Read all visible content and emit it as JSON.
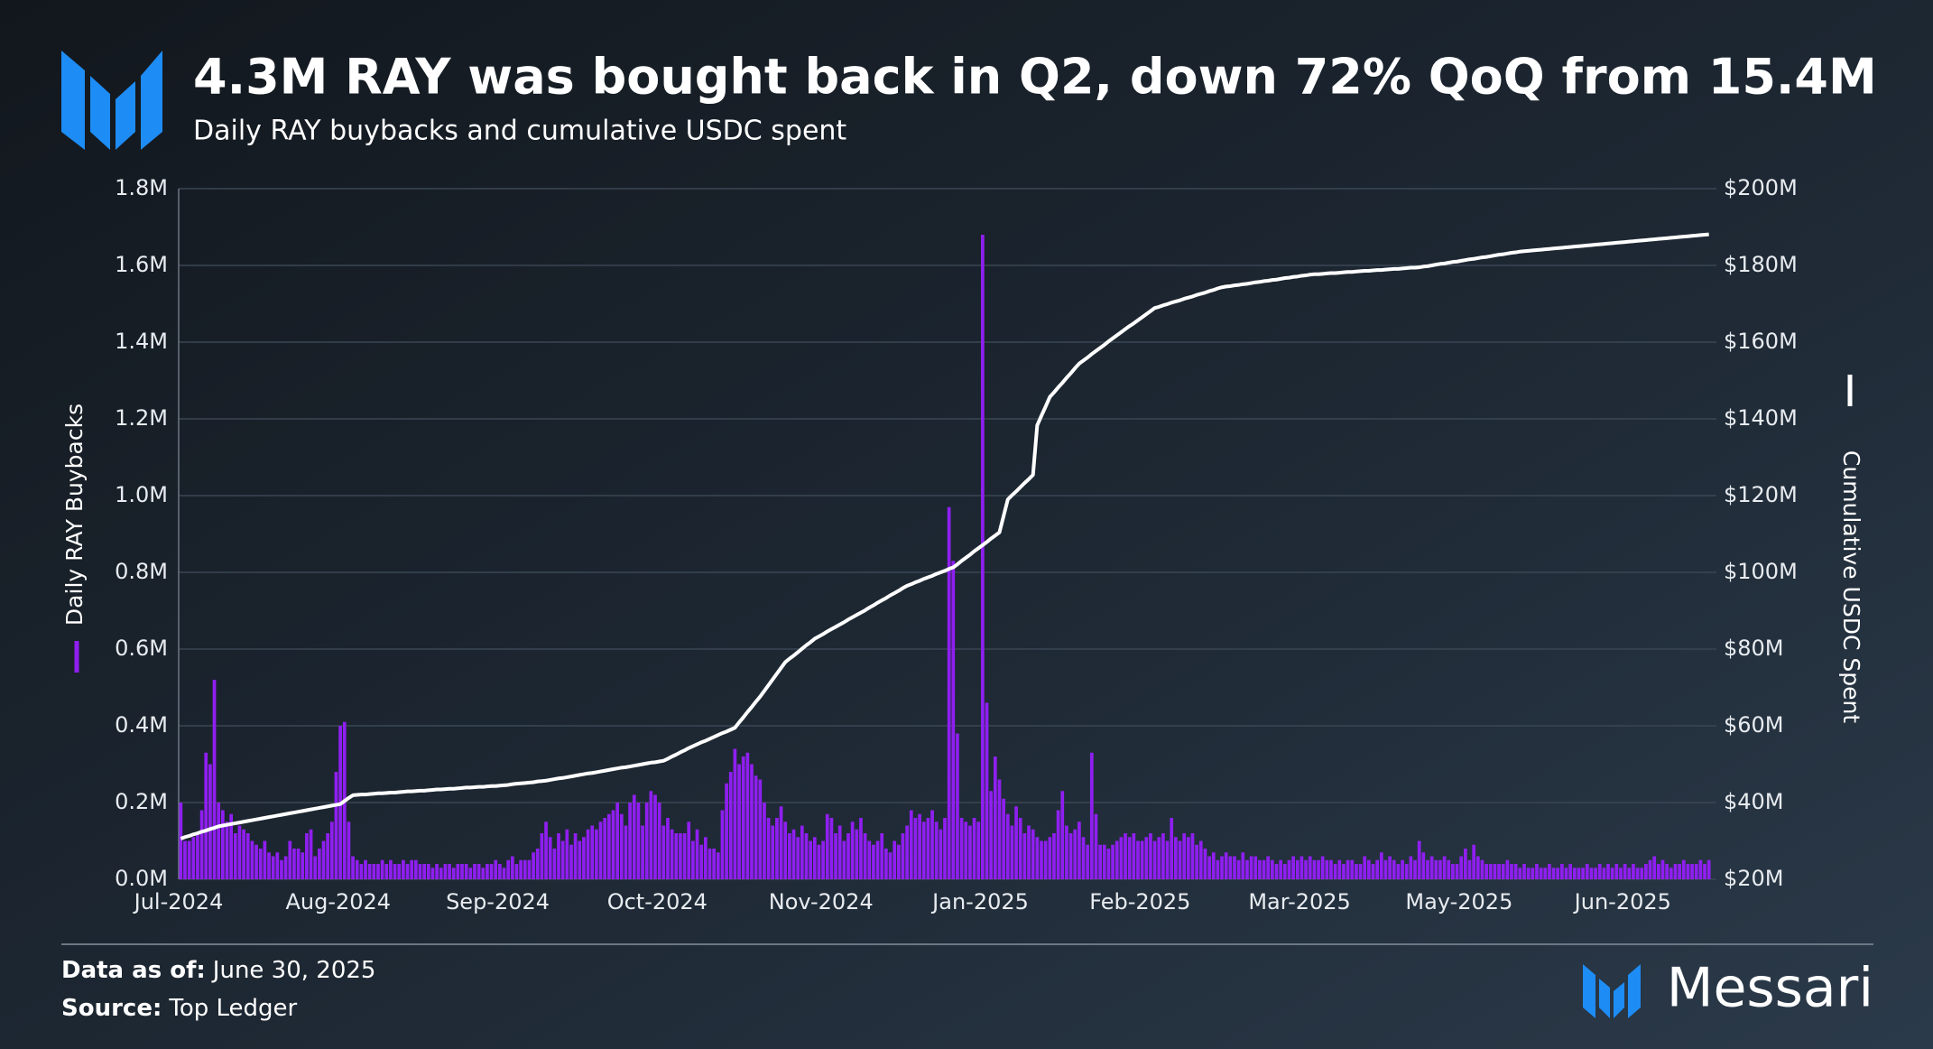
{
  "title": "4.3M RAY was bought back in Q2, down 72% QoQ from 15.4M",
  "subtitle": "Daily RAY buybacks and cumulative USDC spent",
  "chart_data": {
    "type": "combo",
    "grid": true,
    "categories": [
      "Jul-2024",
      null,
      null,
      null,
      null,
      null,
      null,
      null,
      null,
      null,
      null,
      null,
      null,
      null,
      null,
      null,
      null,
      null,
      null,
      null,
      null,
      null,
      null,
      null,
      null,
      null,
      null,
      null,
      null,
      null,
      null,
      null,
      null,
      null,
      null,
      null,
      null,
      null,
      "Aug-2024",
      null,
      null,
      null,
      null,
      null,
      null,
      null,
      null,
      null,
      null,
      null,
      null,
      null,
      null,
      null,
      null,
      null,
      null,
      null,
      null,
      null,
      null,
      null,
      null,
      null,
      null,
      null,
      null,
      null,
      null,
      null,
      null,
      null,
      null,
      null,
      null,
      null,
      "Sep-2024",
      null,
      null,
      null,
      null,
      null,
      null,
      null,
      null,
      null,
      null,
      null,
      null,
      null,
      null,
      null,
      null,
      null,
      null,
      null,
      null,
      null,
      null,
      null,
      null,
      null,
      null,
      null,
      null,
      null,
      null,
      null,
      null,
      null,
      null,
      null,
      null,
      null,
      "Oct-2024",
      null,
      null,
      null,
      null,
      null,
      null,
      null,
      null,
      null,
      null,
      null,
      null,
      null,
      null,
      null,
      null,
      null,
      null,
      null,
      null,
      null,
      null,
      null,
      null,
      null,
      null,
      null,
      null,
      null,
      null,
      null,
      null,
      null,
      null,
      null,
      null,
      null,
      null,
      "Nov-2024",
      null,
      null,
      null,
      null,
      null,
      null,
      null,
      null,
      null,
      null,
      null,
      null,
      null,
      null,
      null,
      null,
      null,
      null,
      null,
      null,
      null,
      null,
      null,
      null,
      null,
      null,
      null,
      null,
      null,
      null,
      null,
      null,
      null,
      null,
      null,
      null,
      null,
      "Jan-2025",
      null,
      null,
      null,
      null,
      null,
      null,
      null,
      null,
      null,
      null,
      null,
      null,
      null,
      null,
      null,
      null,
      null,
      null,
      null,
      null,
      null,
      null,
      null,
      null,
      null,
      null,
      null,
      null,
      null,
      null,
      null,
      null,
      null,
      null,
      null,
      null,
      null,
      "Feb-2025",
      null,
      null,
      null,
      null,
      null,
      null,
      null,
      null,
      null,
      null,
      null,
      null,
      null,
      null,
      null,
      null,
      null,
      null,
      null,
      null,
      null,
      null,
      null,
      null,
      null,
      null,
      null,
      null,
      null,
      null,
      null,
      null,
      null,
      null,
      null,
      null,
      null,
      "Mar-2025",
      null,
      null,
      null,
      null,
      null,
      null,
      null,
      null,
      null,
      null,
      null,
      null,
      null,
      null,
      null,
      null,
      null,
      null,
      null,
      null,
      null,
      null,
      null,
      null,
      null,
      null,
      null,
      null,
      null,
      null,
      null,
      null,
      null,
      null,
      null,
      null,
      null,
      "May-2025",
      null,
      null,
      null,
      null,
      null,
      null,
      null,
      null,
      null,
      null,
      null,
      null,
      null,
      null,
      null,
      null,
      null,
      null,
      null,
      null,
      null,
      null,
      null,
      null,
      null,
      null,
      null,
      null,
      null,
      null,
      null,
      null,
      null,
      null,
      null,
      null,
      null,
      null,
      "Jun-2025",
      null,
      null,
      null,
      null,
      null,
      null,
      null,
      null,
      null,
      null,
      null,
      null,
      null,
      null,
      null,
      null,
      null,
      null,
      null,
      null
    ],
    "series": [
      {
        "name": "Daily RAY Buybacks",
        "type": "bar",
        "color": "#8f1ff0",
        "values": [
          0.2,
          0.1,
          0.1,
          0.11,
          0.12,
          0.18,
          0.33,
          0.3,
          0.52,
          0.2,
          0.18,
          0.15,
          0.17,
          0.12,
          0.14,
          0.13,
          0.12,
          0.1,
          0.09,
          0.08,
          0.1,
          0.07,
          0.06,
          0.07,
          0.05,
          0.06,
          0.1,
          0.08,
          0.08,
          0.07,
          0.12,
          0.13,
          0.06,
          0.08,
          0.1,
          0.12,
          0.15,
          0.28,
          0.4,
          0.41,
          0.15,
          0.06,
          0.05,
          0.04,
          0.05,
          0.04,
          0.04,
          0.04,
          0.05,
          0.04,
          0.05,
          0.04,
          0.04,
          0.05,
          0.04,
          0.05,
          0.05,
          0.04,
          0.04,
          0.04,
          0.03,
          0.04,
          0.03,
          0.04,
          0.04,
          0.03,
          0.04,
          0.04,
          0.04,
          0.03,
          0.04,
          0.04,
          0.03,
          0.04,
          0.04,
          0.05,
          0.04,
          0.03,
          0.05,
          0.06,
          0.04,
          0.05,
          0.05,
          0.05,
          0.07,
          0.08,
          0.12,
          0.15,
          0.11,
          0.08,
          0.12,
          0.1,
          0.13,
          0.09,
          0.12,
          0.1,
          0.11,
          0.13,
          0.14,
          0.13,
          0.15,
          0.16,
          0.17,
          0.18,
          0.2,
          0.17,
          0.14,
          0.2,
          0.22,
          0.2,
          0.14,
          0.2,
          0.23,
          0.22,
          0.2,
          0.14,
          0.16,
          0.13,
          0.12,
          0.12,
          0.12,
          0.15,
          0.1,
          0.13,
          0.09,
          0.11,
          0.08,
          0.08,
          0.07,
          0.18,
          0.25,
          0.28,
          0.34,
          0.3,
          0.32,
          0.33,
          0.3,
          0.27,
          0.26,
          0.2,
          0.16,
          0.14,
          0.16,
          0.19,
          0.15,
          0.12,
          0.13,
          0.11,
          0.14,
          0.12,
          0.1,
          0.11,
          0.09,
          0.1,
          0.17,
          0.16,
          0.12,
          0.14,
          0.1,
          0.12,
          0.15,
          0.13,
          0.16,
          0.12,
          0.1,
          0.09,
          0.1,
          0.12,
          0.08,
          0.07,
          0.1,
          0.09,
          0.12,
          0.14,
          0.18,
          0.16,
          0.17,
          0.15,
          0.16,
          0.18,
          0.15,
          0.13,
          0.16,
          0.97,
          0.83,
          0.38,
          0.16,
          0.15,
          0.14,
          0.16,
          0.15,
          1.68,
          0.46,
          0.23,
          0.32,
          0.26,
          0.21,
          0.17,
          0.14,
          0.19,
          0.16,
          0.12,
          0.14,
          0.13,
          0.11,
          0.1,
          0.1,
          0.11,
          0.12,
          0.18,
          0.23,
          0.14,
          0.12,
          0.13,
          0.15,
          0.11,
          0.09,
          0.33,
          0.17,
          0.09,
          0.09,
          0.08,
          0.09,
          0.1,
          0.11,
          0.12,
          0.11,
          0.12,
          0.1,
          0.1,
          0.11,
          0.12,
          0.1,
          0.11,
          0.12,
          0.1,
          0.16,
          0.11,
          0.1,
          0.12,
          0.11,
          0.12,
          0.09,
          0.1,
          0.08,
          0.06,
          0.07,
          0.05,
          0.06,
          0.07,
          0.06,
          0.06,
          0.05,
          0.07,
          0.05,
          0.06,
          0.06,
          0.05,
          0.05,
          0.06,
          0.05,
          0.04,
          0.05,
          0.04,
          0.05,
          0.06,
          0.05,
          0.06,
          0.05,
          0.06,
          0.05,
          0.05,
          0.06,
          0.05,
          0.05,
          0.04,
          0.05,
          0.04,
          0.05,
          0.05,
          0.04,
          0.04,
          0.06,
          0.05,
          0.04,
          0.05,
          0.07,
          0.05,
          0.06,
          0.05,
          0.04,
          0.05,
          0.04,
          0.06,
          0.05,
          0.1,
          0.07,
          0.05,
          0.06,
          0.05,
          0.05,
          0.06,
          0.05,
          0.04,
          0.04,
          0.06,
          0.08,
          0.05,
          0.09,
          0.06,
          0.05,
          0.04,
          0.04,
          0.04,
          0.04,
          0.04,
          0.05,
          0.04,
          0.04,
          0.03,
          0.04,
          0.03,
          0.03,
          0.04,
          0.03,
          0.03,
          0.04,
          0.03,
          0.03,
          0.04,
          0.03,
          0.04,
          0.03,
          0.03,
          0.03,
          0.04,
          0.03,
          0.03,
          0.04,
          0.03,
          0.04,
          0.03,
          0.04,
          0.03,
          0.04,
          0.03,
          0.04,
          0.03,
          0.03,
          0.04,
          0.05,
          0.06,
          0.04,
          0.05,
          0.04,
          0.03,
          0.04,
          0.04,
          0.05,
          0.04,
          0.04,
          0.04,
          0.05,
          0.04,
          0.05
        ]
      },
      {
        "name": "Cumulative USDC Spent",
        "type": "line",
        "axis": "y2",
        "color": "#ffffff",
        "values": [
          30.6,
          31.0,
          31.3,
          31.7,
          32.0,
          32.4,
          32.7,
          33.1,
          33.4,
          33.8,
          34.0,
          34.2,
          34.4,
          34.6,
          34.8,
          35.0,
          35.2,
          35.4,
          35.6,
          35.8,
          36.0,
          36.2,
          36.4,
          36.6,
          36.8,
          37.0,
          37.2,
          37.4,
          37.6,
          37.8,
          38.0,
          38.2,
          38.4,
          38.6,
          38.8,
          39.0,
          39.2,
          39.4,
          39.6,
          40.4,
          41.2,
          41.9,
          42.0,
          42.1,
          42.1,
          42.2,
          42.3,
          42.4,
          42.4,
          42.5,
          42.6,
          42.6,
          42.7,
          42.8,
          42.9,
          42.9,
          43.0,
          43.1,
          43.1,
          43.2,
          43.3,
          43.4,
          43.4,
          43.5,
          43.6,
          43.6,
          43.7,
          43.8,
          43.9,
          43.9,
          44.0,
          44.1,
          44.1,
          44.2,
          44.3,
          44.3,
          44.4,
          44.5,
          44.6,
          44.8,
          44.9,
          45.0,
          45.1,
          45.2,
          45.3,
          45.5,
          45.6,
          45.7,
          45.9,
          46.1,
          46.3,
          46.4,
          46.6,
          46.8,
          47.0,
          47.2,
          47.4,
          47.6,
          47.7,
          47.9,
          48.1,
          48.3,
          48.5,
          48.7,
          48.9,
          49.1,
          49.2,
          49.4,
          49.6,
          49.8,
          50.0,
          50.2,
          50.4,
          50.5,
          50.7,
          50.9,
          51.4,
          52.0,
          52.5,
          53.1,
          53.6,
          54.2,
          54.7,
          55.2,
          55.7,
          56.1,
          56.6,
          57.1,
          57.6,
          58.1,
          58.5,
          59.0,
          59.5,
          60.9,
          62.2,
          63.6,
          64.9,
          66.3,
          67.6,
          69.1,
          70.6,
          72.1,
          73.6,
          75.1,
          76.6,
          77.5,
          78.3,
          79.2,
          80.1,
          81.0,
          81.8,
          82.7,
          83.3,
          83.9,
          84.6,
          85.2,
          85.8,
          86.4,
          87.0,
          87.7,
          88.3,
          88.9,
          89.5,
          90.1,
          90.8,
          91.4,
          92.1,
          92.7,
          93.3,
          94.0,
          94.6,
          95.2,
          95.9,
          96.5,
          96.9,
          97.4,
          97.8,
          98.3,
          98.7,
          99.1,
          99.6,
          100.0,
          100.4,
          100.9,
          101.3,
          102.1,
          103.0,
          103.8,
          104.6,
          105.5,
          106.3,
          107.1,
          107.9,
          108.8,
          109.6,
          110.4,
          114.7,
          119.0,
          120.1,
          121.1,
          122.2,
          123.3,
          124.3,
          125.4,
          138.3,
          140.8,
          143.2,
          145.7,
          146.9,
          148.2,
          149.4,
          150.7,
          151.9,
          153.2,
          154.4,
          155.2,
          156.0,
          156.9,
          157.7,
          158.5,
          159.3,
          160.2,
          161.0,
          161.8,
          162.6,
          163.4,
          164.2,
          164.9,
          165.7,
          166.5,
          167.3,
          168.1,
          168.9,
          169.2,
          169.6,
          169.9,
          170.3,
          170.6,
          170.9,
          171.3,
          171.6,
          171.9,
          172.3,
          172.6,
          172.9,
          173.3,
          173.6,
          174.0,
          174.3,
          174.5,
          174.6,
          174.8,
          174.9,
          175.1,
          175.2,
          175.4,
          175.6,
          175.7,
          175.9,
          176.0,
          176.2,
          176.3,
          176.5,
          176.7,
          176.8,
          177.0,
          177.1,
          177.3,
          177.4,
          177.6,
          177.7,
          177.7,
          177.8,
          177.9,
          178.0,
          178.0,
          178.1,
          178.2,
          178.3,
          178.3,
          178.4,
          178.5,
          178.6,
          178.6,
          178.7,
          178.8,
          178.8,
          178.9,
          179.0,
          179.1,
          179.1,
          179.2,
          179.3,
          179.4,
          179.4,
          179.5,
          179.7,
          179.8,
          180.0,
          180.2,
          180.4,
          180.5,
          180.7,
          180.9,
          181.0,
          181.2,
          181.4,
          181.6,
          181.7,
          181.9,
          182.1,
          182.2,
          182.4,
          182.6,
          182.8,
          182.9,
          183.1,
          183.3,
          183.4,
          183.6,
          183.7,
          183.8,
          183.9,
          184.0,
          184.1,
          184.2,
          184.3,
          184.4,
          184.5,
          184.6,
          184.7,
          184.8,
          184.9,
          185.0,
          185.1,
          185.2,
          185.3,
          185.4,
          185.5,
          185.6,
          185.7,
          185.8,
          185.9,
          186.0,
          186.1,
          186.2,
          186.3,
          186.4,
          186.5,
          186.6,
          186.7,
          186.8,
          186.9,
          187.0,
          187.1,
          187.2,
          187.3,
          187.4,
          187.5,
          187.6,
          187.7,
          187.8,
          187.9,
          188.0,
          188.1
        ]
      }
    ],
    "ylim": [
      0,
      1.8
    ],
    "yticks": [
      {
        "value": 0,
        "label": "0.0M"
      },
      {
        "value": 0.2,
        "label": "0.2M"
      },
      {
        "value": 0.4,
        "label": "0.4M"
      },
      {
        "value": 0.6,
        "label": "0.6M"
      },
      {
        "value": 0.8,
        "label": "0.8M"
      },
      {
        "value": 1.0,
        "label": "1.0M"
      },
      {
        "value": 1.2,
        "label": "1.2M"
      },
      {
        "value": 1.4,
        "label": "1.4M"
      },
      {
        "value": 1.6,
        "label": "1.6M"
      },
      {
        "value": 1.8,
        "label": "1.8M"
      }
    ],
    "y2lim": [
      20,
      200
    ],
    "y2ticks": [
      {
        "value": 20,
        "label": "$20M"
      },
      {
        "value": 40,
        "label": "$40M"
      },
      {
        "value": 60,
        "label": "$60M"
      },
      {
        "value": 80,
        "label": "$80M"
      },
      {
        "value": 100,
        "label": "$100M"
      },
      {
        "value": 120,
        "label": "$120M"
      },
      {
        "value": 140,
        "label": "$140M"
      },
      {
        "value": 160,
        "label": "$160M"
      },
      {
        "value": 180,
        "label": "$180M"
      },
      {
        "value": 200,
        "label": "$200M"
      }
    ]
  },
  "footer": {
    "date_label": "Data as of:",
    "date": "June 30, 2025",
    "source_label": "Source:",
    "source": "Top Ledger",
    "brand": "Messari"
  }
}
